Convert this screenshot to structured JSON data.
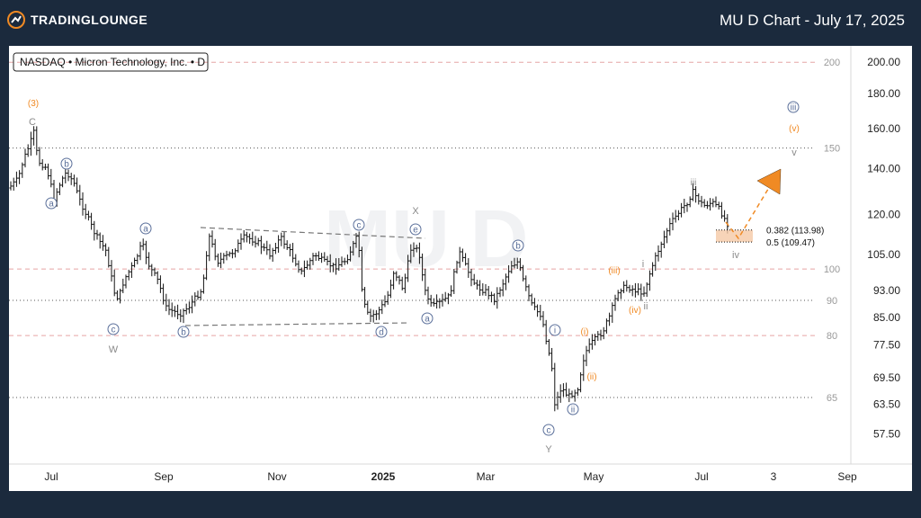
{
  "header": {
    "logo_text": "TRADINGLOUNGE",
    "title": "MU D Chart - July 17, 2025"
  },
  "chart_data": {
    "type": "candlestick",
    "symbol_label": "NASDAQ • Micron Technology, Inc. • D",
    "x_axis_labels": [
      "Jul",
      "Sep",
      "Nov",
      "2025",
      "Mar",
      "May",
      "Jul",
      "3",
      "Sep"
    ],
    "y_scale": "log",
    "y_range": [
      52,
      205
    ],
    "y_ticks": [
      "200.00",
      "180.00",
      "160.00",
      "140.00",
      "120.00",
      "105.00",
      "93.00",
      "85.00",
      "77.50",
      "69.50",
      "63.50",
      "57.50"
    ],
    "y_tick_values": [
      200,
      180,
      160,
      140,
      120,
      105,
      93,
      85,
      77.5,
      69.5,
      63.5,
      57.5
    ],
    "grid_levels": [
      {
        "label": "200",
        "value": 200,
        "style": "dashed-red"
      },
      {
        "label": "150",
        "value": 150,
        "style": "dotted"
      },
      {
        "label": "100",
        "value": 100,
        "style": "dashed-red"
      },
      {
        "label": "90",
        "value": 90,
        "style": "dotted"
      },
      {
        "label": "80",
        "value": 80,
        "style": "dashed-red"
      },
      {
        "label": "65",
        "value": 65,
        "style": "dotted"
      }
    ],
    "fib_levels": [
      {
        "label": "0.382 (113.98)",
        "value": 113.98
      },
      {
        "label": "0.5 (109.47)",
        "value": 109.47
      }
    ],
    "wave_labels": [
      {
        "text": "(3)",
        "color": "orange",
        "circled": false
      },
      {
        "text": "C",
        "color": "gray",
        "circled": false
      },
      {
        "text": "b",
        "color": "blue",
        "circled": true
      },
      {
        "text": "a",
        "color": "blue",
        "circled": true
      },
      {
        "text": "a",
        "color": "blue",
        "circled": true
      },
      {
        "text": "c",
        "color": "blue",
        "circled": true
      },
      {
        "text": "W",
        "color": "gray",
        "circled": false
      },
      {
        "text": "b",
        "color": "blue",
        "circled": true
      },
      {
        "text": "c",
        "color": "blue",
        "circled": true
      },
      {
        "text": "X",
        "color": "gray",
        "circled": false
      },
      {
        "text": "e",
        "color": "blue",
        "circled": true
      },
      {
        "text": "d",
        "color": "blue",
        "circled": true
      },
      {
        "text": "a",
        "color": "blue",
        "circled": true
      },
      {
        "text": "b",
        "color": "blue",
        "circled": true
      },
      {
        "text": "i",
        "color": "blue",
        "circled": true
      },
      {
        "text": "c",
        "color": "blue",
        "circled": true
      },
      {
        "text": "Y",
        "color": "gray",
        "circled": false
      },
      {
        "text": "ii",
        "color": "blue",
        "circled": true
      },
      {
        "text": "(i)",
        "color": "orange",
        "circled": false
      },
      {
        "text": "(ii)",
        "color": "orange",
        "circled": false
      },
      {
        "text": "(iii)",
        "color": "orange",
        "circled": false
      },
      {
        "text": "(iv)",
        "color": "orange",
        "circled": false
      },
      {
        "text": "i",
        "color": "gray",
        "circled": false
      },
      {
        "text": "ii",
        "color": "gray",
        "circled": false
      },
      {
        "text": "iii",
        "color": "gray",
        "circled": false
      },
      {
        "text": "iv",
        "color": "gray",
        "circled": false
      },
      {
        "text": "iii",
        "color": "blue",
        "circled": true
      },
      {
        "text": "(v)",
        "color": "orange",
        "circled": false
      },
      {
        "text": "v",
        "color": "gray",
        "circled": false
      }
    ],
    "watermark": "MU",
    "colors": {
      "orange": "#f08a24",
      "blue": "#5a6f9a",
      "gray": "#8a8a8a",
      "red_grid": "#e6a5a5",
      "fib_box": "#f5c9a6"
    }
  }
}
